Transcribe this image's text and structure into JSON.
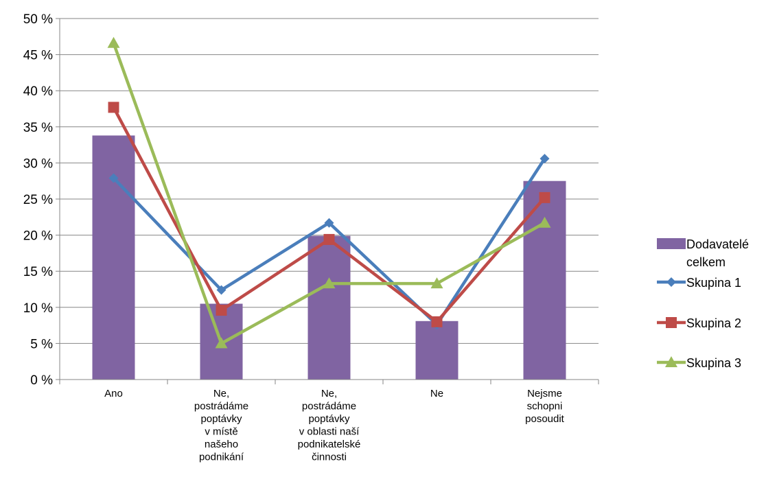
{
  "chart_data": {
    "type": "bar",
    "categories": [
      [
        "Ano"
      ],
      [
        "Ne,",
        "postrádáme",
        "poptávky",
        "v místě",
        "našeho",
        "podnikání"
      ],
      [
        "Ne,",
        "postrádáme",
        "poptávky",
        "v oblasti naší",
        "podnikatelské",
        "činnosti"
      ],
      [
        "Ne"
      ],
      [
        "Nejsme",
        "schopni",
        "posoudit"
      ]
    ],
    "ylim": [
      0,
      50
    ],
    "yticks": [
      "0 %",
      "5 %",
      "10 %",
      "15 %",
      "20 %",
      "25 %",
      "30 %",
      "35 %",
      "40 %",
      "45 %",
      "50 %"
    ],
    "grid": true,
    "legend_position": "right",
    "series": [
      {
        "name": [
          "Dodavatelé",
          "celkem"
        ],
        "kind": "bar",
        "color": "#8064a2",
        "values": [
          33.8,
          10.5,
          19.9,
          8.1,
          27.5
        ]
      },
      {
        "name": [
          "Skupina 1"
        ],
        "kind": "line",
        "marker": "diamond",
        "color": "#4a7ebb",
        "values": [
          27.9,
          12.4,
          21.7,
          7.6,
          30.6
        ]
      },
      {
        "name": [
          "Skupina 2"
        ],
        "kind": "line",
        "marker": "square",
        "color": "#be4b48",
        "values": [
          37.7,
          9.6,
          19.4,
          8.0,
          25.2
        ]
      },
      {
        "name": [
          "Skupina 3"
        ],
        "kind": "line",
        "marker": "triangle",
        "color": "#9bbb59",
        "values": [
          46.6,
          5.0,
          13.3,
          13.3,
          21.7
        ]
      }
    ]
  }
}
